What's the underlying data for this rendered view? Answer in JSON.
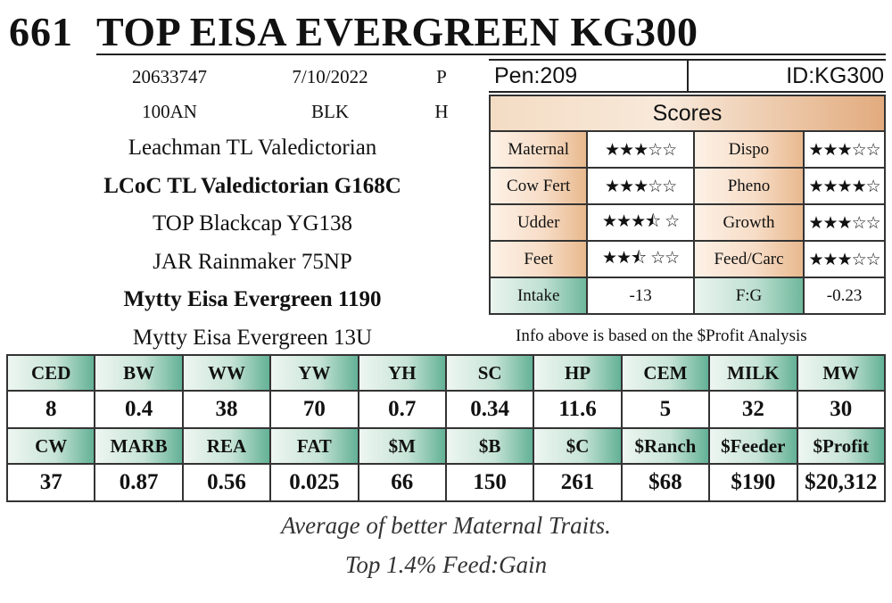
{
  "header": {
    "lot": "661",
    "name": "TOP EISA EVERGREEN KG300"
  },
  "info": {
    "row1": [
      "20633747",
      "7/10/2022",
      "P"
    ],
    "row2": [
      "100AN",
      "BLK",
      "H"
    ]
  },
  "pedigree": {
    "sire_sire": "Leachman TL Valedictorian",
    "sire": "LCoC TL Valedictorian G168C",
    "sire_dam": "TOP Blackcap YG138",
    "dam_sire": "JAR Rainmaker 75NP",
    "dam": "Mytty Eisa Evergreen 1190",
    "dam_dam": "Mytty Eisa Evergreen 13U"
  },
  "pen": {
    "pen": "Pen:209",
    "id": "ID:KG300"
  },
  "scores": {
    "title": "Scores",
    "rows": [
      {
        "l1": "Maternal",
        "s1": "★★★☆☆",
        "r1": 3,
        "l2": "Dispo",
        "s2": "★★★☆☆",
        "r2": 3
      },
      {
        "l1": "Cow Fert",
        "s1": "★★★☆☆",
        "r1": 3,
        "l2": "Pheno",
        "s2": "★★★★☆",
        "r2": 4
      },
      {
        "l1": "Udder",
        "s1": "★★★⯪ ☆",
        "r1": 3.5,
        "l2": "Growth",
        "s2": "★★★☆☆",
        "r2": 3
      },
      {
        "l1": "Feet",
        "s1": "★★⯪ ☆☆",
        "r1": 2.5,
        "l2": "Feed/Carc",
        "s2": "★★★☆☆",
        "r2": 3
      }
    ],
    "intake_label": "Intake",
    "intake_value": "-13",
    "fg_label": "F:G",
    "fg_value": "-0.23"
  },
  "note": "Info above is based on the $Profit Analysis",
  "traits": {
    "row1_headers": [
      "CED",
      "BW",
      "WW",
      "YW",
      "YH",
      "SC",
      "HP",
      "CEM",
      "MILK",
      "MW"
    ],
    "row1_values": [
      "8",
      "0.4",
      "38",
      "70",
      "0.7",
      "0.34",
      "11.6",
      "5",
      "32",
      "30"
    ],
    "row2_headers": [
      "CW",
      "MARB",
      "REA",
      "FAT",
      "$M",
      "$B",
      "$C",
      "$Ranch",
      "$Feeder",
      "$Profit"
    ],
    "row2_values": [
      "37",
      "0.87",
      "0.56",
      "0.025",
      "66",
      "150",
      "261",
      "$68",
      "$190",
      "$20,312"
    ]
  },
  "footer": {
    "line1": "Average of better Maternal Traits.",
    "line2": "Top 1.4% Feed:Gain"
  }
}
